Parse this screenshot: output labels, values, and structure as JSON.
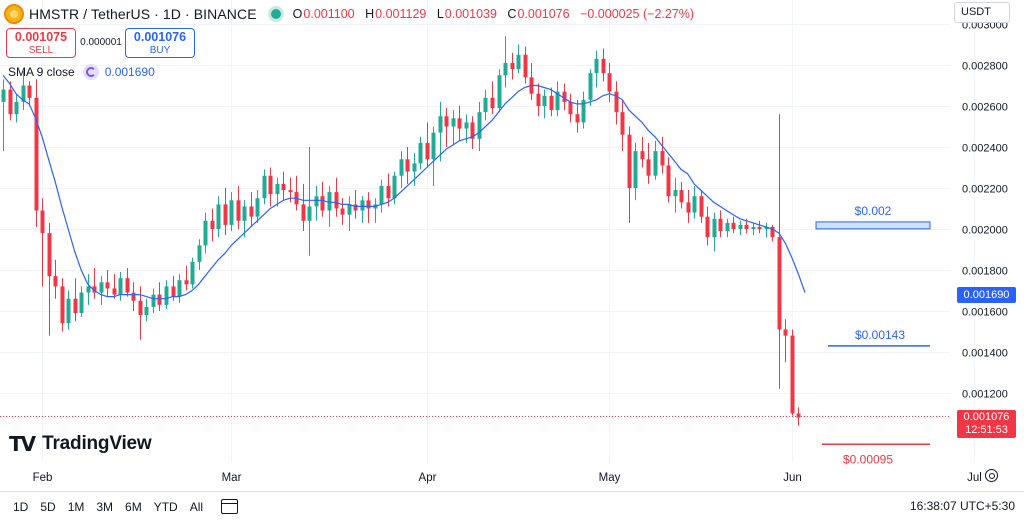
{
  "header": {
    "symbol_title": "HMSTR / TetherUS · 1D · BINANCE",
    "icon": "coin-icon",
    "ohlc": [
      {
        "key": "O",
        "value": "0.001100"
      },
      {
        "key": "H",
        "value": "0.001129"
      },
      {
        "key": "L",
        "value": "0.001039"
      },
      {
        "key": "C",
        "value": "0.001076"
      },
      {
        "key": "",
        "value": "−0.000025 (−2.27%)"
      }
    ],
    "currency": "USDT"
  },
  "trade": {
    "sell_price": "0.001075",
    "sell_label": "SELL",
    "spread": "0.000001",
    "buy_price": "0.001076",
    "buy_label": "BUY"
  },
  "indicator": {
    "name": "SMA 9 close",
    "value": "0.001690"
  },
  "branding": {
    "logo_text": "TradingView"
  },
  "price_badges": {
    "sma": "0.001690",
    "last_price": "0.001076",
    "countdown": "12:51:53"
  },
  "timeframes": [
    "1D",
    "5D",
    "1M",
    "3M",
    "6M",
    "YTD",
    "All"
  ],
  "clock": "16:38:07 UTC+5:30",
  "colors": {
    "up": "#22ab94",
    "down": "#f23645",
    "sma": "#2962ff"
  },
  "chart_data": {
    "type": "candlestick",
    "y_ticks": [
      "0.001200",
      "0.001400",
      "0.001600",
      "0.001800",
      "0.002000",
      "0.002200",
      "0.002400",
      "0.002600",
      "0.002800",
      "0.003000"
    ],
    "ylim": [
      0.00094,
      0.003
    ],
    "x_labels": [
      "Feb",
      "Mar",
      "Apr",
      "May",
      "Jun",
      "Jul"
    ],
    "x_label_candle_index": [
      6,
      35,
      65,
      93,
      121,
      149
    ],
    "candles": [
      [
        0.00262,
        0.00273,
        0.00238,
        0.00268
      ],
      [
        0.00268,
        0.00272,
        0.00253,
        0.00256
      ],
      [
        0.00256,
        0.00266,
        0.00252,
        0.00262
      ],
      [
        0.00262,
        0.00277,
        0.00258,
        0.0027
      ],
      [
        0.0027,
        0.00272,
        0.0026,
        0.00264
      ],
      [
        0.00264,
        0.00273,
        0.00201,
        0.00209
      ],
      [
        0.00209,
        0.00215,
        0.00172,
        0.00198
      ],
      [
        0.00198,
        0.00203,
        0.00148,
        0.00177
      ],
      [
        0.00177,
        0.00185,
        0.00166,
        0.00172
      ],
      [
        0.00172,
        0.00176,
        0.0015,
        0.00154
      ],
      [
        0.00154,
        0.0017,
        0.00151,
        0.00166
      ],
      [
        0.00166,
        0.00176,
        0.00155,
        0.00159
      ],
      [
        0.00159,
        0.00172,
        0.00157,
        0.00169
      ],
      [
        0.00169,
        0.00178,
        0.00163,
        0.00172
      ],
      [
        0.00172,
        0.00181,
        0.00166,
        0.00169
      ],
      [
        0.00169,
        0.00177,
        0.00163,
        0.00174
      ],
      [
        0.00174,
        0.0018,
        0.00167,
        0.00171
      ],
      [
        0.00171,
        0.00178,
        0.00166,
        0.00168
      ],
      [
        0.00168,
        0.00179,
        0.00165,
        0.00176
      ],
      [
        0.00176,
        0.00181,
        0.00167,
        0.00169
      ],
      [
        0.00169,
        0.00174,
        0.0016,
        0.00165
      ],
      [
        0.00165,
        0.00172,
        0.00146,
        0.00158
      ],
      [
        0.00158,
        0.00166,
        0.00155,
        0.00162
      ],
      [
        0.00162,
        0.00171,
        0.00159,
        0.00168
      ],
      [
        0.00168,
        0.00174,
        0.0016,
        0.00163
      ],
      [
        0.00163,
        0.00175,
        0.00161,
        0.00172
      ],
      [
        0.00172,
        0.00177,
        0.00165,
        0.00167
      ],
      [
        0.00167,
        0.00178,
        0.00164,
        0.00175
      ],
      [
        0.00175,
        0.00182,
        0.0017,
        0.00173
      ],
      [
        0.00173,
        0.00186,
        0.00171,
        0.00184
      ],
      [
        0.00184,
        0.00195,
        0.0018,
        0.00192
      ],
      [
        0.00192,
        0.00208,
        0.00188,
        0.00204
      ],
      [
        0.00204,
        0.0021,
        0.00194,
        0.002
      ],
      [
        0.002,
        0.00216,
        0.00196,
        0.00212
      ],
      [
        0.00212,
        0.0022,
        0.00197,
        0.00202
      ],
      [
        0.00202,
        0.00218,
        0.00199,
        0.00214
      ],
      [
        0.00214,
        0.00221,
        0.002,
        0.00204
      ],
      [
        0.00204,
        0.00214,
        0.00196,
        0.00211
      ],
      [
        0.00211,
        0.00218,
        0.00201,
        0.00206
      ],
      [
        0.00206,
        0.00219,
        0.00203,
        0.00215
      ],
      [
        0.00215,
        0.00229,
        0.00212,
        0.00226
      ],
      [
        0.00226,
        0.0023,
        0.00211,
        0.00217
      ],
      [
        0.00217,
        0.00225,
        0.00211,
        0.00222
      ],
      [
        0.00222,
        0.00228,
        0.00214,
        0.00219
      ],
      [
        0.00219,
        0.00225,
        0.00213,
        0.00218
      ],
      [
        0.00218,
        0.00226,
        0.00209,
        0.00212
      ],
      [
        0.00212,
        0.00222,
        0.00199,
        0.00204
      ],
      [
        0.00204,
        0.0024,
        0.00187,
        0.00211
      ],
      [
        0.00211,
        0.00221,
        0.00204,
        0.00216
      ],
      [
        0.00216,
        0.00223,
        0.00206,
        0.00209
      ],
      [
        0.00209,
        0.00221,
        0.00201,
        0.00218
      ],
      [
        0.00218,
        0.00225,
        0.00206,
        0.0021
      ],
      [
        0.0021,
        0.00215,
        0.00202,
        0.00207
      ],
      [
        0.00207,
        0.00216,
        0.00199,
        0.00212
      ],
      [
        0.00212,
        0.00219,
        0.00205,
        0.00209
      ],
      [
        0.00209,
        0.00216,
        0.00203,
        0.00214
      ],
      [
        0.00214,
        0.00218,
        0.00203,
        0.0021
      ],
      [
        0.0021,
        0.00215,
        0.00203,
        0.00212
      ],
      [
        0.00212,
        0.00224,
        0.00208,
        0.00221
      ],
      [
        0.00221,
        0.00227,
        0.00211,
        0.00215
      ],
      [
        0.00215,
        0.00228,
        0.00212,
        0.00226
      ],
      [
        0.00226,
        0.00238,
        0.0022,
        0.00234
      ],
      [
        0.00234,
        0.0024,
        0.00222,
        0.00228
      ],
      [
        0.00228,
        0.00237,
        0.00221,
        0.00232
      ],
      [
        0.00232,
        0.00245,
        0.00229,
        0.00242
      ],
      [
        0.00242,
        0.00252,
        0.0023,
        0.00234
      ],
      [
        0.00234,
        0.0025,
        0.00221,
        0.00247
      ],
      [
        0.00247,
        0.00262,
        0.00233,
        0.00255
      ],
      [
        0.00255,
        0.00259,
        0.0024,
        0.0025
      ],
      [
        0.0025,
        0.00258,
        0.00241,
        0.00254
      ],
      [
        0.00254,
        0.0026,
        0.00243,
        0.00249
      ],
      [
        0.00249,
        0.00256,
        0.00242,
        0.00252
      ],
      [
        0.00252,
        0.00255,
        0.00239,
        0.00244
      ],
      [
        0.00244,
        0.00262,
        0.00238,
        0.00257
      ],
      [
        0.00257,
        0.00268,
        0.00253,
        0.00264
      ],
      [
        0.00264,
        0.00272,
        0.00256,
        0.00259
      ],
      [
        0.00259,
        0.00278,
        0.00257,
        0.00275
      ],
      [
        0.00275,
        0.00294,
        0.00269,
        0.00281
      ],
      [
        0.00281,
        0.00286,
        0.00273,
        0.00278
      ],
      [
        0.00278,
        0.0029,
        0.00276,
        0.00285
      ],
      [
        0.00285,
        0.00289,
        0.00271,
        0.00274
      ],
      [
        0.00274,
        0.00281,
        0.00263,
        0.00266
      ],
      [
        0.00266,
        0.00271,
        0.00255,
        0.0026
      ],
      [
        0.0026,
        0.00268,
        0.00254,
        0.00265
      ],
      [
        0.00265,
        0.00269,
        0.00255,
        0.00258
      ],
      [
        0.00258,
        0.00272,
        0.00255,
        0.00267
      ],
      [
        0.00267,
        0.00271,
        0.00258,
        0.00262
      ],
      [
        0.00262,
        0.00266,
        0.00252,
        0.00256
      ],
      [
        0.00256,
        0.00263,
        0.00247,
        0.00252
      ],
      [
        0.00252,
        0.00267,
        0.00249,
        0.00263
      ],
      [
        0.00263,
        0.00278,
        0.0026,
        0.00276
      ],
      [
        0.00276,
        0.00287,
        0.00269,
        0.00283
      ],
      [
        0.00283,
        0.00288,
        0.00272,
        0.00276
      ],
      [
        0.00276,
        0.00281,
        0.00262,
        0.00267
      ],
      [
        0.00267,
        0.00272,
        0.00251,
        0.00257
      ],
      [
        0.00257,
        0.00263,
        0.00238,
        0.00246
      ],
      [
        0.00246,
        0.0025,
        0.00203,
        0.0022
      ],
      [
        0.0022,
        0.00242,
        0.00214,
        0.00238
      ],
      [
        0.00238,
        0.00245,
        0.0023,
        0.00234
      ],
      [
        0.00234,
        0.00242,
        0.00222,
        0.00226
      ],
      [
        0.00226,
        0.00243,
        0.00224,
        0.00238
      ],
      [
        0.00238,
        0.00245,
        0.00227,
        0.00231
      ],
      [
        0.00231,
        0.00235,
        0.00213,
        0.00216
      ],
      [
        0.00216,
        0.00225,
        0.00208,
        0.00219
      ],
      [
        0.00219,
        0.00223,
        0.0021,
        0.00213
      ],
      [
        0.00213,
        0.00219,
        0.00203,
        0.00208
      ],
      [
        0.00208,
        0.00221,
        0.00205,
        0.00216
      ],
      [
        0.00216,
        0.00219,
        0.00203,
        0.00206
      ],
      [
        0.00206,
        0.00211,
        0.00192,
        0.00196
      ],
      [
        0.00196,
        0.00208,
        0.00189,
        0.00205
      ],
      [
        0.00205,
        0.00209,
        0.00196,
        0.00199
      ],
      [
        0.00199,
        0.00205,
        0.00196,
        0.00203
      ],
      [
        0.00203,
        0.00206,
        0.00198,
        0.002
      ],
      [
        0.002,
        0.00204,
        0.00197,
        0.00202
      ],
      [
        0.00202,
        0.00205,
        0.00198,
        0.002
      ],
      [
        0.002,
        0.00203,
        0.00197,
        0.00201
      ],
      [
        0.00201,
        0.00204,
        0.00198,
        0.002
      ],
      [
        0.002,
        0.00203,
        0.00196,
        0.00201
      ],
      [
        0.00201,
        0.00202,
        0.00194,
        0.00196
      ],
      [
        0.00196,
        0.00256,
        0.00122,
        0.00151
      ],
      [
        0.00151,
        0.00156,
        0.00135,
        0.00148
      ],
      [
        0.00148,
        0.00151,
        0.00109,
        0.0011
      ],
      [
        0.0011,
        0.00113,
        0.00104,
        0.00108
      ]
    ],
    "sma": {
      "name": "SMA 9 close",
      "start_index": 0,
      "values": [
        0.00275,
        0.00271,
        0.00266,
        0.00263,
        0.00261,
        0.00254,
        0.00245,
        0.00234,
        0.00223,
        0.00211,
        0.002,
        0.00189,
        0.0018,
        0.00173,
        0.0017,
        0.00168,
        0.00167,
        0.00167,
        0.00168,
        0.00168,
        0.00168,
        0.00168,
        0.00167,
        0.00166,
        0.00166,
        0.00166,
        0.00167,
        0.00167,
        0.00168,
        0.0017,
        0.00173,
        0.00177,
        0.00181,
        0.00185,
        0.00188,
        0.00192,
        0.00195,
        0.00198,
        0.00201,
        0.00204,
        0.00207,
        0.0021,
        0.00212,
        0.00214,
        0.00215,
        0.00215,
        0.00214,
        0.00214,
        0.00214,
        0.00214,
        0.00213,
        0.00213,
        0.00212,
        0.00212,
        0.00211,
        0.00211,
        0.00211,
        0.00211,
        0.00212,
        0.00213,
        0.00215,
        0.00218,
        0.00221,
        0.00224,
        0.00227,
        0.0023,
        0.00233,
        0.00236,
        0.00239,
        0.00241,
        0.00243,
        0.00244,
        0.00245,
        0.00247,
        0.0025,
        0.00253,
        0.00257,
        0.00261,
        0.00264,
        0.00267,
        0.00269,
        0.0027,
        0.0027,
        0.00269,
        0.00268,
        0.00266,
        0.00264,
        0.00262,
        0.00261,
        0.00261,
        0.00262,
        0.00263,
        0.00265,
        0.00266,
        0.00265,
        0.00263,
        0.00258,
        0.00255,
        0.00252,
        0.00248,
        0.00245,
        0.00241,
        0.00237,
        0.00233,
        0.00229,
        0.00227,
        0.00222,
        0.00219,
        0.00216,
        0.00213,
        0.00211,
        0.00209,
        0.00207,
        0.00205,
        0.00204,
        0.00203,
        0.00202,
        0.00201,
        0.002,
        0.00198,
        0.00193,
        0.00186,
        0.00178,
        0.00169
      ]
    },
    "horizontal_levels": [
      {
        "label": "$0.002",
        "value": 0.00202,
        "style": "zone"
      },
      {
        "label": "$0.00143",
        "value": 0.00143,
        "style": "line"
      },
      {
        "label": "$0.00095",
        "value": 0.00095,
        "style": "line"
      }
    ],
    "last_price": 0.001076
  }
}
